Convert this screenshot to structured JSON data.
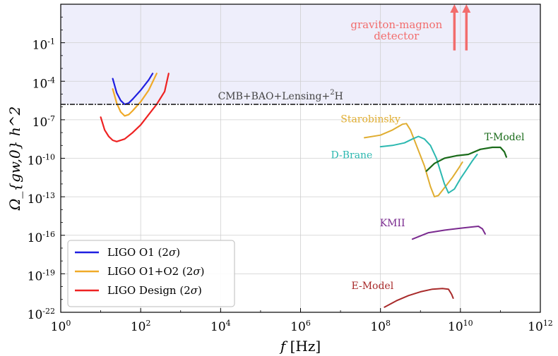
{
  "chart_data": {
    "type": "line",
    "xlabel_main": "f",
    "xlabel_unit": "[Hz]",
    "ylabel": "Ω_{gw,0} h^2",
    "x_scale": "log10",
    "y_scale": "log10",
    "xlim_log10": [
      0,
      12
    ],
    "ylim_log10": [
      -22,
      2
    ],
    "x_ticks": [
      {
        "exp": 0,
        "base": "10",
        "sup": "0"
      },
      {
        "exp": 2,
        "base": "10",
        "sup": "2"
      },
      {
        "exp": 4,
        "base": "10",
        "sup": "4"
      },
      {
        "exp": 6,
        "base": "10",
        "sup": "6"
      },
      {
        "exp": 8,
        "base": "10",
        "sup": "8"
      },
      {
        "exp": 10,
        "base": "10",
        "sup": "10"
      },
      {
        "exp": 12,
        "base": "10",
        "sup": "12"
      }
    ],
    "y_ticks": [
      {
        "exp": -1,
        "base": "10",
        "sup": "-1"
      },
      {
        "exp": -4,
        "base": "10",
        "sup": "-4"
      },
      {
        "exp": -7,
        "base": "10",
        "sup": "-7"
      },
      {
        "exp": -10,
        "base": "10",
        "sup": "-10"
      },
      {
        "exp": -13,
        "base": "10",
        "sup": "-13"
      },
      {
        "exp": -16,
        "base": "10",
        "sup": "-16"
      },
      {
        "exp": -19,
        "base": "10",
        "sup": "-19"
      },
      {
        "exp": -22,
        "base": "10",
        "sup": "-22"
      }
    ],
    "grid": true,
    "excluded_region": {
      "y_min_log10": -5.8,
      "color": "#eeeefb"
    },
    "cmb_bound": {
      "y_log10": -5.8,
      "label": "CMB+BAO+Lensing+",
      "label_sup": "2",
      "label_tail": "H",
      "color": "#222222"
    },
    "graviton_magnon": {
      "label_line1": "graviton-magnon",
      "label_line2": "detector",
      "color": "#f26d6d",
      "arrows_x_log10": [
        9.85,
        10.15
      ],
      "y_from_log10": -1.6,
      "y_to_log10": 2
    },
    "legend": {
      "placement": "lower-left",
      "entries": [
        {
          "text": "LIGO O1 (2",
          "sym": "σ",
          "tail": ")",
          "color": "#1f1fe0"
        },
        {
          "text": "LIGO O1+O2 (2",
          "sym": "σ",
          "tail": ")",
          "color": "#f0aa28"
        },
        {
          "text": "LIGO Design (2",
          "sym": "σ",
          "tail": ")",
          "color": "#ee2222"
        }
      ]
    },
    "series": [
      {
        "name": "LIGO O1",
        "color": "#1f1fe0",
        "width": 2.2,
        "points": [
          [
            1.3,
            -3.8
          ],
          [
            1.4,
            -4.9
          ],
          [
            1.5,
            -5.5
          ],
          [
            1.6,
            -5.8
          ],
          [
            1.7,
            -5.7
          ],
          [
            1.8,
            -5.4
          ],
          [
            2.0,
            -4.7
          ],
          [
            2.2,
            -3.9
          ],
          [
            2.3,
            -3.4
          ]
        ]
      },
      {
        "name": "LIGO O1+O2",
        "color": "#f0aa28",
        "width": 2.2,
        "points": [
          [
            1.3,
            -4.6
          ],
          [
            1.4,
            -5.7
          ],
          [
            1.5,
            -6.4
          ],
          [
            1.6,
            -6.7
          ],
          [
            1.7,
            -6.6
          ],
          [
            1.8,
            -6.3
          ],
          [
            2.0,
            -5.6
          ],
          [
            2.2,
            -4.7
          ],
          [
            2.4,
            -3.4
          ]
        ]
      },
      {
        "name": "LIGO Design",
        "color": "#ee2222",
        "width": 2.2,
        "points": [
          [
            1.0,
            -6.8
          ],
          [
            1.1,
            -7.8
          ],
          [
            1.2,
            -8.3
          ],
          [
            1.3,
            -8.6
          ],
          [
            1.4,
            -8.7
          ],
          [
            1.6,
            -8.5
          ],
          [
            1.8,
            -8.0
          ],
          [
            2.0,
            -7.4
          ],
          [
            2.2,
            -6.6
          ],
          [
            2.4,
            -5.8
          ],
          [
            2.6,
            -4.8
          ],
          [
            2.7,
            -3.4
          ]
        ]
      },
      {
        "name": "Starobinsky",
        "color": "#e0ad30",
        "width": 2,
        "points": [
          [
            7.6,
            -8.4
          ],
          [
            8.0,
            -8.2
          ],
          [
            8.3,
            -7.8
          ],
          [
            8.55,
            -7.35
          ],
          [
            8.65,
            -7.3
          ],
          [
            8.75,
            -7.8
          ],
          [
            8.9,
            -9.0
          ],
          [
            9.1,
            -10.6
          ],
          [
            9.25,
            -12.2
          ],
          [
            9.35,
            -13.0
          ],
          [
            9.45,
            -12.9
          ],
          [
            9.6,
            -12.3
          ],
          [
            9.8,
            -11.5
          ],
          [
            9.95,
            -10.8
          ],
          [
            10.05,
            -10.3
          ]
        ]
      },
      {
        "name": "D-Brane",
        "color": "#2bb8b0",
        "width": 2,
        "points": [
          [
            8.0,
            -9.1
          ],
          [
            8.3,
            -9.0
          ],
          [
            8.6,
            -8.8
          ],
          [
            8.8,
            -8.5
          ],
          [
            8.95,
            -8.3
          ],
          [
            9.1,
            -8.5
          ],
          [
            9.25,
            -9.0
          ],
          [
            9.4,
            -10.0
          ],
          [
            9.5,
            -11.0
          ],
          [
            9.6,
            -12.0
          ],
          [
            9.7,
            -12.7
          ],
          [
            9.85,
            -12.4
          ],
          [
            10.0,
            -11.6
          ],
          [
            10.15,
            -10.9
          ],
          [
            10.3,
            -10.2
          ],
          [
            10.42,
            -9.7
          ]
        ]
      },
      {
        "name": "T-Model",
        "color": "#1a6b1a",
        "width": 2.2,
        "points": [
          [
            9.15,
            -11.0
          ],
          [
            9.35,
            -10.4
          ],
          [
            9.6,
            -10.0
          ],
          [
            9.9,
            -9.8
          ],
          [
            10.2,
            -9.7
          ],
          [
            10.5,
            -9.3
          ],
          [
            10.8,
            -9.15
          ],
          [
            11.0,
            -9.15
          ],
          [
            11.1,
            -9.5
          ],
          [
            11.15,
            -9.9
          ]
        ]
      },
      {
        "name": "KMII",
        "color": "#7a2a8f",
        "width": 2,
        "points": [
          [
            8.8,
            -16.3
          ],
          [
            9.2,
            -15.8
          ],
          [
            9.6,
            -15.6
          ],
          [
            10.0,
            -15.45
          ],
          [
            10.3,
            -15.35
          ],
          [
            10.45,
            -15.3
          ],
          [
            10.55,
            -15.5
          ],
          [
            10.62,
            -15.9
          ]
        ]
      },
      {
        "name": "E-Model",
        "color": "#a82a2a",
        "width": 2,
        "points": [
          [
            8.1,
            -21.6
          ],
          [
            8.4,
            -21.1
          ],
          [
            8.7,
            -20.7
          ],
          [
            9.0,
            -20.4
          ],
          [
            9.3,
            -20.2
          ],
          [
            9.55,
            -20.15
          ],
          [
            9.7,
            -20.2
          ],
          [
            9.78,
            -20.6
          ],
          [
            9.82,
            -20.9
          ]
        ]
      }
    ],
    "annotations": [
      {
        "text": "Starobinsky",
        "color": "#e0ad30",
        "x_log10": 8.5,
        "y_log10": -7.2,
        "anchor": "end"
      },
      {
        "text": "D-Brane",
        "color": "#2bb8b0",
        "x_log10": 7.8,
        "y_log10": -10.0,
        "anchor": "end"
      },
      {
        "text": "T-Model",
        "color": "#1a6b1a",
        "x_log10": 10.6,
        "y_log10": -8.6,
        "anchor": "start"
      },
      {
        "text": "KMII",
        "color": "#7a2a8f",
        "x_log10": 8.3,
        "y_log10": -15.3,
        "anchor": "middle"
      },
      {
        "text": "E-Model",
        "color": "#a82a2a",
        "x_log10": 7.8,
        "y_log10": -20.2,
        "anchor": "middle"
      }
    ]
  }
}
